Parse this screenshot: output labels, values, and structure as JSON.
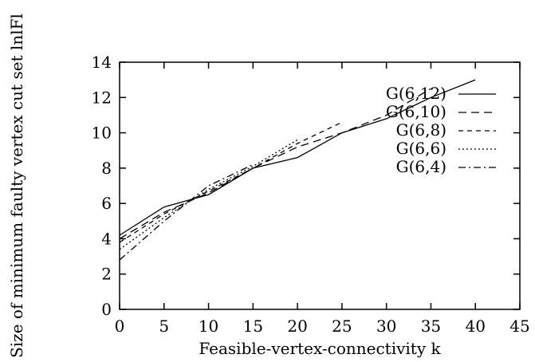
{
  "chart_data": {
    "type": "line",
    "title": "",
    "xlabel": "Feasible-vertex-connectivity k",
    "ylabel": "Size of minimum faulty vertex cut set lnlFl",
    "xlim": [
      0,
      45
    ],
    "ylim": [
      0,
      14
    ],
    "xticks": [
      "0",
      "5",
      "10",
      "15",
      "20",
      "25",
      "30",
      "35",
      "40",
      "45"
    ],
    "yticks": [
      "0",
      "2",
      "4",
      "6",
      "8",
      "10",
      "12",
      "14"
    ],
    "grid": false,
    "legend_position": "top-right",
    "series": [
      {
        "name": "G(6,12)",
        "dash": "solid",
        "x": [
          0,
          5,
          10,
          15,
          20,
          25,
          30,
          35,
          40
        ],
        "y": [
          4.2,
          5.8,
          6.5,
          8.0,
          8.6,
          10.0,
          10.8,
          12.0,
          13.0
        ]
      },
      {
        "name": "G(6,10)",
        "dash": "long-dash",
        "x": [
          0,
          5,
          10,
          15,
          20,
          25,
          30,
          35
        ],
        "y": [
          4.0,
          5.5,
          6.6,
          8.0,
          9.2,
          10.0,
          11.0,
          12.5
        ]
      },
      {
        "name": "G(6,8)",
        "dash": "short-dash",
        "x": [
          0,
          5,
          10,
          15,
          20,
          25
        ],
        "y": [
          3.8,
          5.4,
          6.7,
          8.0,
          9.4,
          10.6
        ]
      },
      {
        "name": "G(6,6)",
        "dash": "dotted",
        "x": [
          0,
          5,
          10,
          15,
          20
        ],
        "y": [
          3.4,
          5.2,
          6.8,
          8.1,
          9.6
        ]
      },
      {
        "name": "G(6,4)",
        "dash": "dash-dot",
        "x": [
          0,
          5,
          10,
          15
        ],
        "y": [
          2.8,
          5.0,
          7.0,
          8.2
        ]
      }
    ]
  }
}
